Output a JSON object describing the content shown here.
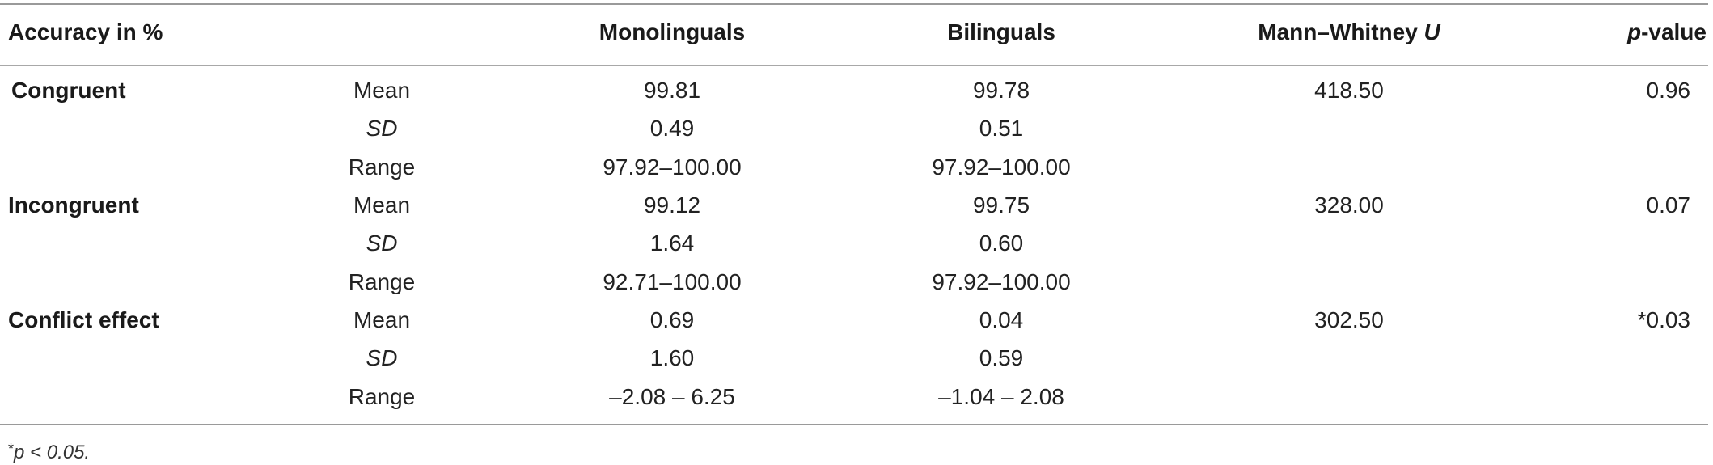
{
  "table": {
    "headers": {
      "measure": "Accuracy in %",
      "monolinguals": "Monolinguals",
      "bilinguals": "Bilinguals",
      "mw_prefix": "Mann–Whitney ",
      "mw_symbol": "U",
      "p_symbol": "p",
      "p_suffix": "-value"
    },
    "groups": [
      {
        "label": "Congruent",
        "mw": "418.50",
        "p": "0.96",
        "rows": [
          {
            "stat": "Mean",
            "mono": "99.81",
            "bi": "99.78"
          },
          {
            "stat": "SD",
            "mono": "0.49",
            "bi": "0.51"
          },
          {
            "stat": "Range",
            "mono": "97.92–100.00",
            "bi": "97.92–100.00"
          }
        ]
      },
      {
        "label": "Incongruent",
        "mw": "328.00",
        "p": "0.07",
        "rows": [
          {
            "stat": "Mean",
            "mono": "99.12",
            "bi": "99.75"
          },
          {
            "stat": "SD",
            "mono": "1.64",
            "bi": "0.60"
          },
          {
            "stat": "Range",
            "mono": "92.71–100.00",
            "bi": "97.92–100.00"
          }
        ]
      },
      {
        "label": "Conflict effect",
        "mw": "302.50",
        "p": "*0.03",
        "rows": [
          {
            "stat": "Mean",
            "mono": "0.69",
            "bi": "0.04"
          },
          {
            "stat": "SD",
            "mono": "1.60",
            "bi": "0.59"
          },
          {
            "stat": "Range",
            "mono": "–2.08 – 6.25",
            "bi": "–1.04 – 2.08"
          }
        ]
      }
    ],
    "footnote": {
      "asterisk": "*",
      "text": "p < 0.05."
    }
  }
}
